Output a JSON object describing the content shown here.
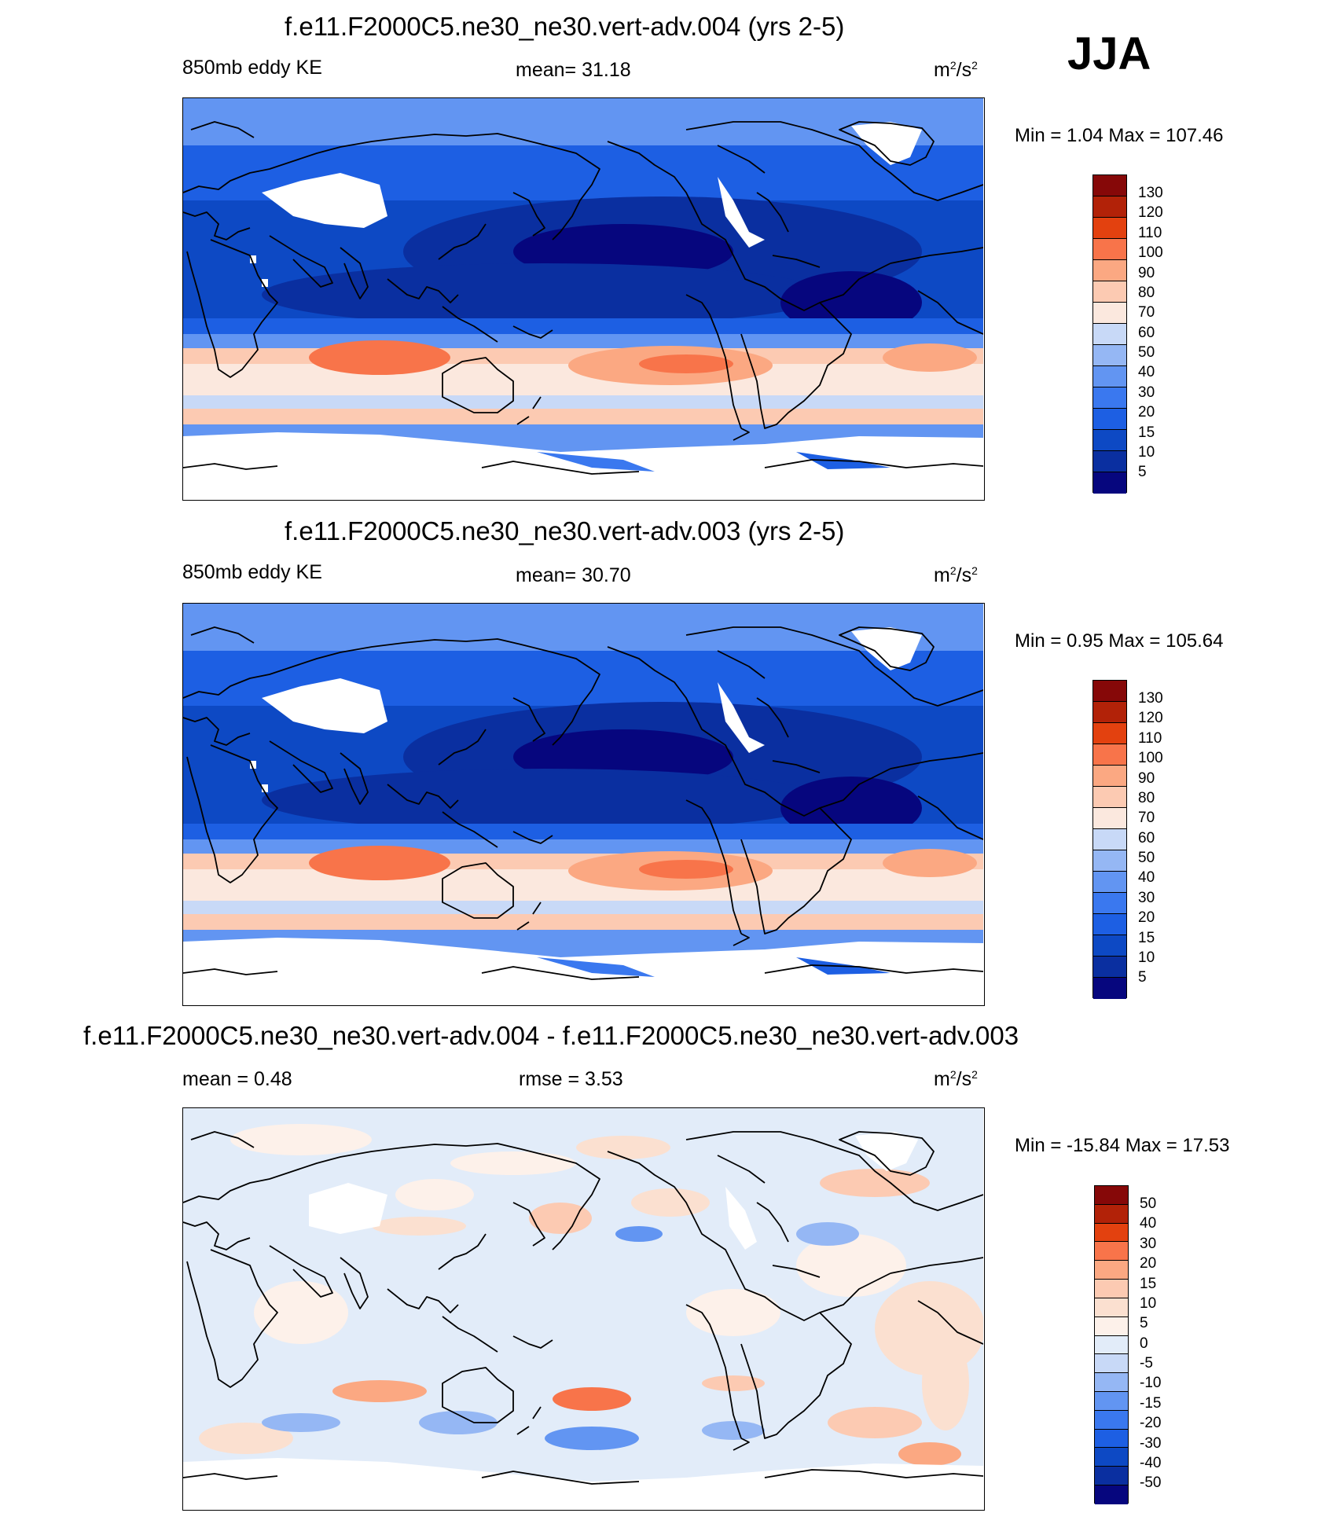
{
  "season": "JJA",
  "units_base": "m",
  "units_exp1": "2",
  "units_mid": "/s",
  "units_exp2": "2",
  "palettes": {
    "abs": [
      "#06067e",
      "#0a2fa0",
      "#0d49c4",
      "#1d5fe3",
      "#3a78ef",
      "#6295f2",
      "#95b7f4",
      "#c8d9f7",
      "#fbe8de",
      "#fccab2",
      "#fba882",
      "#f8744a",
      "#e3410f",
      "#b22208",
      "#860808"
    ],
    "diff": [
      "#06067e",
      "#0a2fa0",
      "#0d49c4",
      "#1d5fe3",
      "#3a78ef",
      "#6295f2",
      "#95b7f4",
      "#c8d9f7",
      "#e2ecf9",
      "#fdf1ea",
      "#fbe0d0",
      "#fccab2",
      "#fba882",
      "#f8744a",
      "#e3410f",
      "#b22208",
      "#860808"
    ]
  },
  "panels": [
    {
      "title": "f.e11.F2000C5.ne30_ne30.vert-adv.004 (yrs 2-5)",
      "left_label": "850mb eddy KE",
      "center_label": "mean=  31.18",
      "minmax": "Min =    1.04 Max = 107.46",
      "colorbar_labels": [
        "130",
        "120",
        "110",
        "100",
        "90",
        "80",
        "70",
        "60",
        "50",
        "40",
        "30",
        "20",
        "15",
        "10",
        "5"
      ]
    },
    {
      "title": "f.e11.F2000C5.ne30_ne30.vert-adv.003 (yrs 2-5)",
      "left_label": "850mb eddy KE",
      "center_label": "mean=  30.70",
      "minmax": "Min =    0.95 Max = 105.64",
      "colorbar_labels": [
        "130",
        "120",
        "110",
        "100",
        "90",
        "80",
        "70",
        "60",
        "50",
        "40",
        "30",
        "20",
        "15",
        "10",
        "5"
      ]
    },
    {
      "title": "f.e11.F2000C5.ne30_ne30.vert-adv.004 - f.e11.F2000C5.ne30_ne30.vert-adv.003",
      "left_label": "mean =    0.48",
      "center_label": "rmse =    3.53",
      "minmax": "Min = -15.84 Max =  17.53",
      "colorbar_labels": [
        "50",
        "40",
        "30",
        "20",
        "15",
        "10",
        "5",
        "0",
        "-5",
        "-10",
        "-15",
        "-20",
        "-30",
        "-40",
        "-50"
      ]
    }
  ]
}
